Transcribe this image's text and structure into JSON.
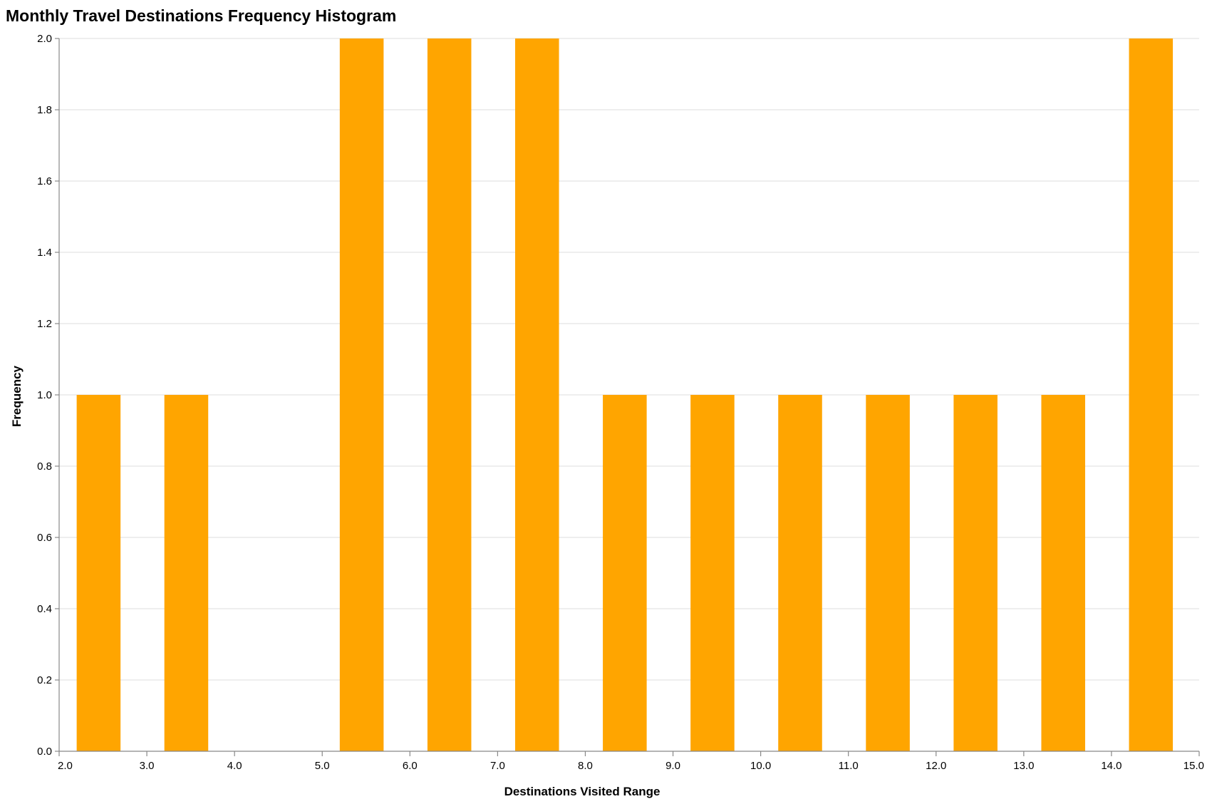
{
  "chart_data": {
    "type": "bar",
    "title": "Monthly Travel Destinations Frequency Histogram",
    "xlabel": "Destinations Visited Range",
    "ylabel": "Frequency",
    "xlim": [
      2.0,
      15.0
    ],
    "ylim": [
      0.0,
      2.0
    ],
    "x_ticks": [
      "2.0",
      "3.0",
      "4.0",
      "5.0",
      "6.0",
      "7.0",
      "8.0",
      "9.0",
      "10.0",
      "11.0",
      "12.0",
      "13.0",
      "14.0",
      "15.0"
    ],
    "y_ticks": [
      "0.0",
      "0.2",
      "0.4",
      "0.6",
      "0.8",
      "1.0",
      "1.2",
      "1.4",
      "1.6",
      "1.8",
      "2.0"
    ],
    "grid": true,
    "color": "#FFA500",
    "bins": [
      {
        "start": 2.2,
        "end": 2.7,
        "value": 1
      },
      {
        "start": 3.2,
        "end": 3.7,
        "value": 1
      },
      {
        "start": 5.2,
        "end": 5.7,
        "value": 2
      },
      {
        "start": 6.2,
        "end": 6.7,
        "value": 2
      },
      {
        "start": 7.2,
        "end": 7.7,
        "value": 2
      },
      {
        "start": 8.2,
        "end": 8.7,
        "value": 1
      },
      {
        "start": 9.2,
        "end": 9.7,
        "value": 1
      },
      {
        "start": 10.2,
        "end": 10.7,
        "value": 1
      },
      {
        "start": 11.2,
        "end": 11.7,
        "value": 1
      },
      {
        "start": 12.2,
        "end": 12.7,
        "value": 1
      },
      {
        "start": 13.2,
        "end": 13.7,
        "value": 1
      },
      {
        "start": 14.2,
        "end": 14.7,
        "value": 2
      }
    ]
  }
}
